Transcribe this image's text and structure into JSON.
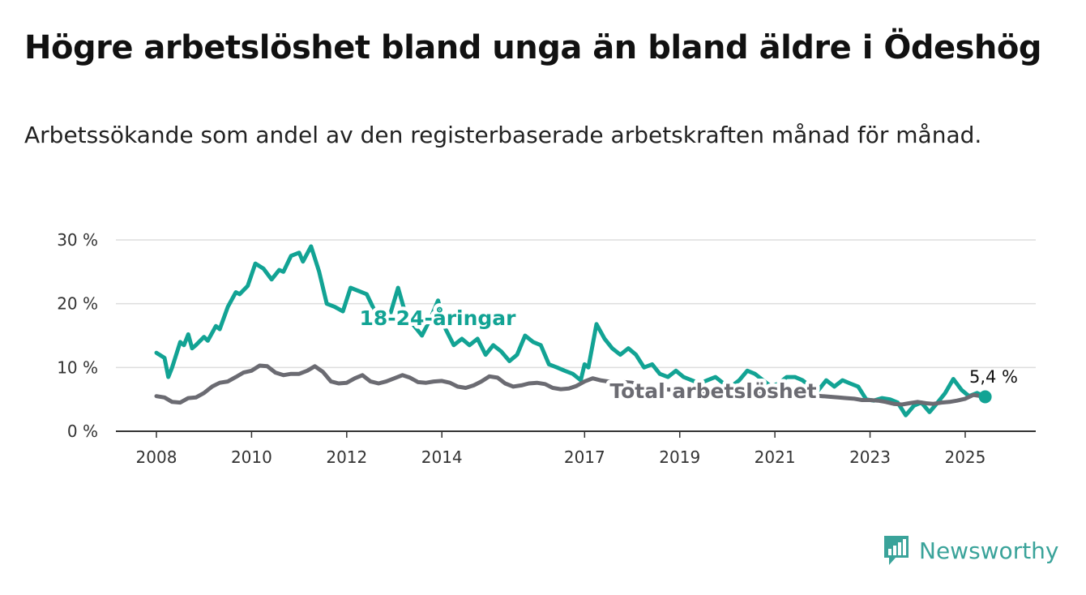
{
  "title": "Högre arbetslöshet bland unga än bland äldre i Ödeshög",
  "subtitle": "Arbetssökande som andel av den registerbaserade arbetskraften månad för månad.",
  "brand": "Newsworthy",
  "colors": {
    "young": "#12a394",
    "total": "#6b6b72",
    "grid": "#dddddd",
    "axis": "#333333",
    "brand": "#3aa39a"
  },
  "chart_data": {
    "type": "line",
    "ylim": [
      0,
      30
    ],
    "xlim": [
      2008.0,
      2025.58
    ],
    "y_ticks": [
      0,
      10,
      20,
      30
    ],
    "y_tick_labels": [
      "0 %",
      "10 %",
      "20 %",
      "30 %"
    ],
    "x_ticks": [
      2008,
      2010,
      2012,
      2014,
      2017,
      2019,
      2021,
      2023,
      2025
    ],
    "x_tick_labels": [
      "2008",
      "2010",
      "2012",
      "2014",
      "2017",
      "2019",
      "2021",
      "2023",
      "2025"
    ],
    "grid": true,
    "end_label": "5,4 %",
    "series": [
      {
        "name": "18-24-åringar",
        "x": [
          2008.0,
          2008.17,
          2008.25,
          2008.33,
          2008.5,
          2008.58,
          2008.67,
          2008.75,
          2008.83,
          2009.0,
          2009.08,
          2009.25,
          2009.33,
          2009.5,
          2009.67,
          2009.75,
          2009.92,
          2010.08,
          2010.25,
          2010.42,
          2010.58,
          2010.67,
          2010.83,
          2011.0,
          2011.08,
          2011.25,
          2011.42,
          2011.58,
          2011.75,
          2011.92,
          2012.08,
          2012.25,
          2012.42,
          2012.58,
          2012.75,
          2012.92,
          2013.08,
          2013.25,
          2013.42,
          2013.58,
          2013.75,
          2013.92,
          2014.08,
          2014.25,
          2014.42,
          2014.58,
          2014.75,
          2014.92,
          2015.08,
          2015.25,
          2015.42,
          2015.58,
          2015.75,
          2015.92,
          2016.08,
          2016.25,
          2016.42,
          2016.58,
          2016.75,
          2016.92,
          2017.0,
          2017.08,
          2017.25,
          2017.42,
          2017.58,
          2017.75,
          2017.92,
          2018.08,
          2018.25,
          2018.42,
          2018.58,
          2018.75,
          2018.92,
          2019.08,
          2019.25,
          2019.42,
          2019.58,
          2019.75,
          2019.92,
          2020.08,
          2020.25,
          2020.42,
          2020.58,
          2020.75,
          2020.92,
          2021.08,
          2021.25,
          2021.42,
          2021.58,
          2021.75,
          2021.92,
          2022.08,
          2022.25,
          2022.42,
          2022.58,
          2022.75,
          2022.92,
          2023.08,
          2023.25,
          2023.42,
          2023.58,
          2023.75,
          2023.92,
          2024.08,
          2024.25,
          2024.42,
          2024.58,
          2024.75,
          2024.92,
          2025.08,
          2025.25,
          2025.42
        ],
        "values": [
          12.3,
          11.5,
          8.5,
          10.0,
          14.0,
          13.5,
          15.2,
          13.0,
          13.5,
          14.8,
          14.2,
          16.5,
          16.0,
          19.5,
          21.8,
          21.5,
          22.8,
          26.3,
          25.5,
          23.8,
          25.3,
          25.0,
          27.5,
          28.0,
          26.6,
          29.0,
          25.0,
          20.0,
          19.5,
          18.8,
          22.5,
          22.0,
          21.5,
          19.0,
          18.0,
          18.5,
          22.5,
          18.0,
          16.5,
          15.0,
          17.5,
          20.5,
          16.0,
          13.5,
          14.5,
          13.5,
          14.5,
          12.0,
          13.5,
          12.5,
          11.0,
          12.0,
          15.0,
          14.0,
          13.5,
          10.5,
          10.0,
          9.5,
          9.0,
          8.0,
          10.5,
          10.0,
          16.8,
          14.5,
          13.0,
          12.0,
          13.0,
          12.0,
          10.0,
          10.5,
          9.0,
          8.5,
          9.5,
          8.5,
          8.0,
          7.5,
          8.0,
          8.5,
          7.5,
          7.0,
          8.0,
          9.5,
          9.0,
          8.0,
          7.0,
          7.5,
          8.5,
          8.5,
          8.0,
          7.0,
          6.5,
          8.0,
          7.0,
          8.0,
          7.5,
          7.0,
          5.0,
          4.8,
          5.2,
          5.0,
          4.5,
          2.5,
          4.0,
          4.5,
          3.0,
          4.5,
          6.0,
          8.2,
          6.5,
          5.5,
          6.0,
          5.4
        ]
      },
      {
        "name": "Total arbetslöshet",
        "x": [
          2008.0,
          2008.17,
          2008.33,
          2008.5,
          2008.67,
          2008.83,
          2009.0,
          2009.17,
          2009.33,
          2009.5,
          2009.67,
          2009.83,
          2010.0,
          2010.17,
          2010.33,
          2010.5,
          2010.67,
          2010.83,
          2011.0,
          2011.17,
          2011.33,
          2011.5,
          2011.67,
          2011.83,
          2012.0,
          2012.17,
          2012.33,
          2012.5,
          2012.67,
          2012.83,
          2013.0,
          2013.17,
          2013.33,
          2013.5,
          2013.67,
          2013.83,
          2014.0,
          2014.17,
          2014.33,
          2014.5,
          2014.67,
          2014.83,
          2015.0,
          2015.17,
          2015.33,
          2015.5,
          2015.67,
          2015.83,
          2016.0,
          2016.17,
          2016.33,
          2016.5,
          2016.67,
          2016.83,
          2017.0,
          2017.17,
          2017.33,
          2017.5,
          2017.67,
          2017.83,
          2018.0,
          2018.17,
          2018.33,
          2018.5,
          2018.67,
          2018.83,
          2019.0,
          2019.17,
          2019.33,
          2019.5,
          2019.67,
          2019.83,
          2020.0,
          2020.17,
          2020.33,
          2020.5,
          2020.67,
          2020.83,
          2021.0,
          2021.17,
          2021.33,
          2021.5,
          2021.67,
          2021.83,
          2022.0,
          2022.17,
          2022.33,
          2022.5,
          2022.67,
          2022.83,
          2023.0,
          2023.17,
          2023.33,
          2023.5,
          2023.67,
          2023.83,
          2024.0,
          2024.17,
          2024.33,
          2024.5,
          2024.67,
          2024.83,
          2025.0,
          2025.17,
          2025.42
        ],
        "values": [
          5.5,
          5.3,
          4.6,
          4.5,
          5.2,
          5.3,
          6.0,
          7.0,
          7.6,
          7.8,
          8.5,
          9.2,
          9.5,
          10.3,
          10.2,
          9.2,
          8.8,
          9.0,
          9.0,
          9.5,
          10.2,
          9.3,
          7.8,
          7.5,
          7.6,
          8.3,
          8.8,
          7.8,
          7.5,
          7.8,
          8.3,
          8.8,
          8.4,
          7.7,
          7.6,
          7.8,
          7.9,
          7.6,
          7.0,
          6.8,
          7.2,
          7.8,
          8.6,
          8.4,
          7.5,
          7.0,
          7.2,
          7.5,
          7.6,
          7.4,
          6.8,
          6.6,
          6.7,
          7.1,
          7.8,
          8.3,
          8.0,
          7.8,
          7.6,
          7.7,
          7.6,
          7.2,
          7.0,
          6.8,
          6.6,
          6.5,
          6.6,
          6.5,
          6.3,
          6.2,
          6.0,
          6.2,
          6.4,
          6.2,
          6.0,
          5.8,
          5.9,
          5.9,
          6.0,
          6.0,
          5.9,
          5.8,
          5.7,
          5.6,
          5.5,
          5.4,
          5.3,
          5.2,
          5.1,
          4.9,
          4.9,
          4.8,
          4.6,
          4.3,
          4.2,
          4.4,
          4.6,
          4.4,
          4.3,
          4.5,
          4.6,
          4.8,
          5.1,
          5.7,
          5.4
        ]
      }
    ]
  }
}
